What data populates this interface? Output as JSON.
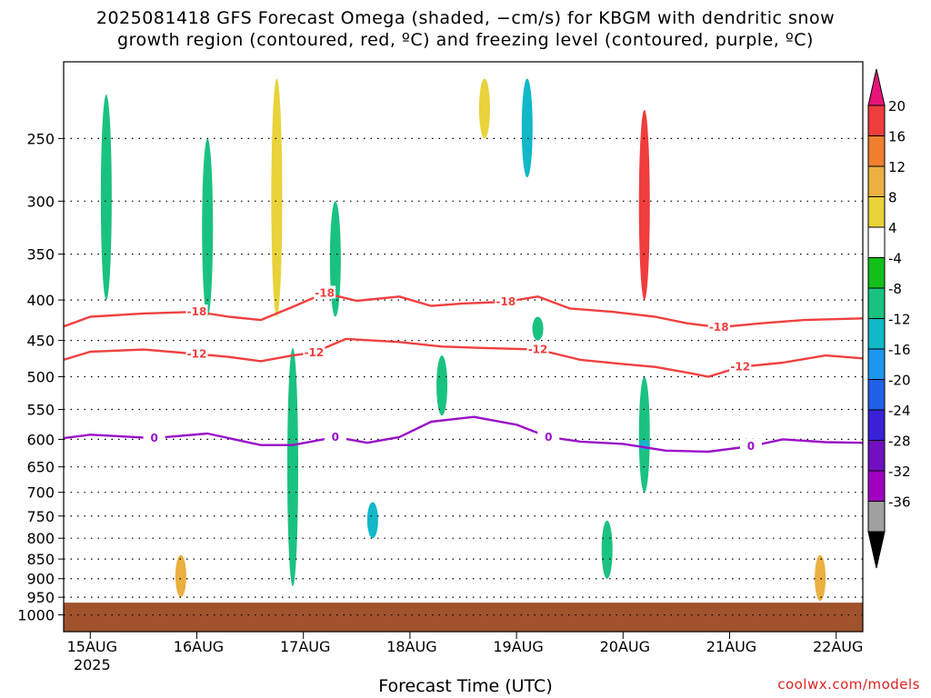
{
  "title_line1": "2025081418 GFS Forecast Omega (shaded, −cm/s) for KBGM with dendritic snow",
  "title_line2": "growth region (contoured, red, ºC) and freezing level (contoured, purple, ºC)",
  "x_axis_title": "Forecast Time (UTC)",
  "credit": "coolwx.com/models",
  "chart_data": {
    "type": "heatmap",
    "title": "2025081418 GFS Forecast Omega (shaded, −cm/s) for KBGM with dendritic snow growth region (contoured, red, ºC) and freezing level (contoured, purple, ºC)",
    "xlabel": "Forecast Time (UTC)",
    "ylabel": "",
    "x_ticks": [
      "15AUG",
      "16AUG",
      "17AUG",
      "18AUG",
      "19AUG",
      "20AUG",
      "21AUG",
      "22AUG"
    ],
    "x_year_label": "2025",
    "x_range_days": [
      14.75,
      22.25
    ],
    "y_ticks": [
      250,
      300,
      350,
      400,
      450,
      500,
      550,
      600,
      650,
      700,
      750,
      800,
      850,
      900,
      950,
      1000
    ],
    "ylim": [
      1050,
      200
    ],
    "y_scale": "log",
    "grid": true,
    "colorbar": {
      "labels": [
        20,
        16,
        12,
        8,
        4,
        -4,
        -8,
        -12,
        -16,
        -20,
        -24,
        -28,
        -32,
        -36
      ],
      "colors": [
        "#f03c3c",
        "#f08030",
        "#eab040",
        "#e9d23a",
        "#ffffff",
        "#13c01a",
        "#1ac280",
        "#10b8c8",
        "#1e96f0",
        "#2060e8",
        "#3a20d8",
        "#7010c0",
        "#a000c0",
        "#a0a0a0"
      ],
      "top_color": "#e8147a",
      "bottom_color": "#000000"
    },
    "contour_series": [
      {
        "name": "-18",
        "color": "#f04040",
        "x": [
          14.75,
          15.0,
          15.5,
          16.0,
          16.3,
          16.6,
          16.9,
          17.2,
          17.5,
          17.9,
          18.2,
          18.5,
          18.9,
          19.2,
          19.5,
          19.9,
          20.3,
          20.6,
          20.9,
          21.3,
          21.7,
          22.25
        ],
        "y": [
          432,
          420,
          416,
          414,
          420,
          424,
          408,
          392,
          401,
          396,
          407,
          404,
          402,
          396,
          410,
          414,
          420,
          428,
          433,
          428,
          424,
          422
        ]
      },
      {
        "name": "-12",
        "color": "#f04040",
        "x": [
          14.75,
          15.0,
          15.5,
          16.0,
          16.3,
          16.6,
          16.9,
          17.1,
          17.4,
          17.9,
          18.3,
          18.7,
          19.2,
          19.6,
          20.0,
          20.3,
          20.6,
          20.8,
          21.1,
          21.5,
          21.9,
          22.25
        ],
        "y": [
          476,
          465,
          462,
          468,
          472,
          478,
          470,
          466,
          448,
          452,
          458,
          460,
          462,
          476,
          482,
          486,
          494,
          500,
          486,
          480,
          470,
          474
        ]
      },
      {
        "name": "0",
        "color": "#9a10c8",
        "x": [
          14.75,
          15.0,
          15.6,
          16.1,
          16.6,
          16.9,
          17.3,
          17.6,
          17.9,
          18.2,
          18.6,
          19.0,
          19.3,
          19.6,
          20.0,
          20.4,
          20.8,
          21.2,
          21.5,
          21.9,
          22.25
        ],
        "y": [
          598,
          592,
          598,
          590,
          610,
          610,
          596,
          606,
          596,
          570,
          562,
          575,
          596,
          604,
          608,
          620,
          622,
          612,
          600,
          605,
          606
        ]
      }
    ],
    "shaded_regions": [
      {
        "x": 15.1,
        "p1": 210,
        "p2": 430,
        "value": 4
      },
      {
        "x": 15.15,
        "p1": 220,
        "p2": 400,
        "value": -8
      },
      {
        "x": 15.3,
        "p1": 230,
        "p2": 360,
        "value": 4
      },
      {
        "x": 15.85,
        "p1": 840,
        "p2": 950,
        "value": 12
      },
      {
        "x": 16.1,
        "p1": 250,
        "p2": 420,
        "value": -8
      },
      {
        "x": 16.75,
        "p1": 210,
        "p2": 420,
        "value": 8
      },
      {
        "x": 16.9,
        "p1": 460,
        "p2": 920,
        "value": -8
      },
      {
        "x": 17.3,
        "p1": 300,
        "p2": 420,
        "value": -8
      },
      {
        "x": 17.65,
        "p1": 720,
        "p2": 800,
        "value": -12
      },
      {
        "x": 18.3,
        "p1": 470,
        "p2": 560,
        "value": -8
      },
      {
        "x": 18.7,
        "p1": 210,
        "p2": 250,
        "value": 8
      },
      {
        "x": 19.1,
        "p1": 210,
        "p2": 280,
        "value": -12
      },
      {
        "x": 19.2,
        "p1": 420,
        "p2": 450,
        "value": -8
      },
      {
        "x": 20.2,
        "p1": 230,
        "p2": 400,
        "value": 20
      },
      {
        "x": 20.2,
        "p1": 500,
        "p2": 700,
        "value": -8
      },
      {
        "x": 20.2,
        "p1": 600,
        "p2": 620,
        "value": -12
      },
      {
        "x": 19.85,
        "p1": 760,
        "p2": 900,
        "value": -8
      },
      {
        "x": 21.3,
        "p1": 210,
        "p2": 600,
        "value": 4
      },
      {
        "x": 21.85,
        "p1": 840,
        "p2": 960,
        "value": 12
      }
    ],
    "surface_color": "#a0522d"
  }
}
